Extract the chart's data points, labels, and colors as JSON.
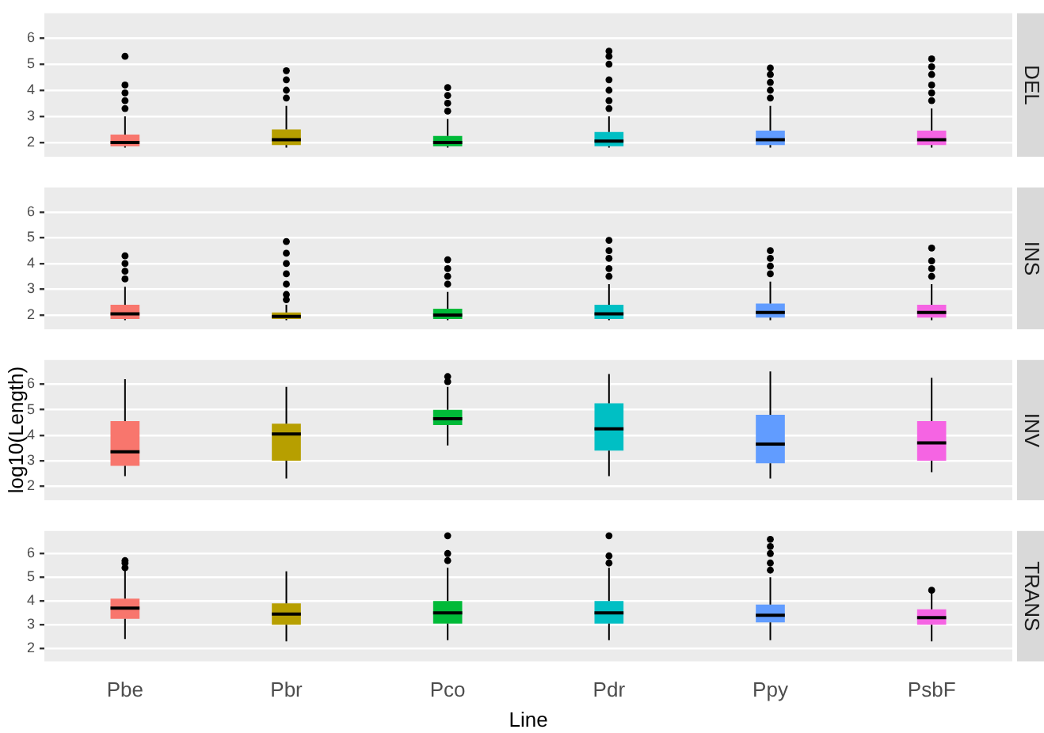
{
  "chart_data": [
    {
      "type": "box",
      "title": "DEL",
      "tick_labels": "y",
      "grid": true,
      "ylim": [
        1.45,
        6.95
      ],
      "yticks": [
        2,
        3,
        4,
        5,
        6
      ],
      "categories": [
        null,
        null,
        null,
        null,
        null,
        null
      ],
      "colors": [
        "#f8766d",
        "#b79f00",
        "#00ba38",
        "#00bfc4",
        "#619cff",
        "#f564e3"
      ],
      "boxes": [
        {
          "low": 1.8,
          "q1": 1.85,
          "median": 2.0,
          "q3": 2.3,
          "high": 3.0,
          "outliers": [
            3.3,
            3.6,
            3.9,
            4.2,
            5.3
          ]
        },
        {
          "low": 1.8,
          "q1": 1.9,
          "median": 2.1,
          "q3": 2.5,
          "high": 3.4,
          "outliers": [
            3.7,
            4.0,
            4.4,
            4.75
          ]
        },
        {
          "low": 1.8,
          "q1": 1.85,
          "median": 2.0,
          "q3": 2.25,
          "high": 2.9,
          "outliers": [
            3.2,
            3.5,
            3.8,
            4.1
          ]
        },
        {
          "low": 1.8,
          "q1": 1.85,
          "median": 2.05,
          "q3": 2.4,
          "high": 3.0,
          "outliers": [
            3.3,
            3.6,
            4.0,
            4.4,
            5.0,
            5.3,
            5.5
          ]
        },
        {
          "low": 1.8,
          "q1": 1.9,
          "median": 2.1,
          "q3": 2.45,
          "high": 3.4,
          "outliers": [
            3.7,
            4.0,
            4.3,
            4.6,
            4.85
          ]
        },
        {
          "low": 1.8,
          "q1": 1.9,
          "median": 2.1,
          "q3": 2.45,
          "high": 3.3,
          "outliers": [
            3.6,
            3.9,
            4.2,
            4.6,
            4.9,
            5.2
          ]
        }
      ]
    },
    {
      "type": "box",
      "title": "INS",
      "tick_labels": "y",
      "grid": true,
      "ylim": [
        1.45,
        6.95
      ],
      "yticks": [
        2,
        3,
        4,
        5,
        6
      ],
      "categories": [
        null,
        null,
        null,
        null,
        null,
        null
      ],
      "colors": [
        "#f8766d",
        "#b79f00",
        "#00ba38",
        "#00bfc4",
        "#619cff",
        "#f564e3"
      ],
      "boxes": [
        {
          "low": 1.8,
          "q1": 1.85,
          "median": 2.05,
          "q3": 2.4,
          "high": 3.1,
          "outliers": [
            3.4,
            3.7,
            4.0,
            4.3
          ]
        },
        {
          "low": 1.8,
          "q1": 1.85,
          "median": 1.95,
          "q3": 2.1,
          "high": 2.4,
          "outliers": [
            2.6,
            2.8,
            3.2,
            3.6,
            4.0,
            4.4,
            4.85
          ]
        },
        {
          "low": 1.8,
          "q1": 1.85,
          "median": 2.0,
          "q3": 2.25,
          "high": 2.9,
          "outliers": [
            3.2,
            3.5,
            3.8,
            4.15
          ]
        },
        {
          "low": 1.8,
          "q1": 1.85,
          "median": 2.05,
          "q3": 2.4,
          "high": 3.2,
          "outliers": [
            3.5,
            3.8,
            4.2,
            4.5,
            4.9
          ]
        },
        {
          "low": 1.8,
          "q1": 1.9,
          "median": 2.1,
          "q3": 2.45,
          "high": 3.3,
          "outliers": [
            3.6,
            3.9,
            4.2,
            4.5
          ]
        },
        {
          "low": 1.8,
          "q1": 1.9,
          "median": 2.1,
          "q3": 2.4,
          "high": 3.2,
          "outliers": [
            3.5,
            3.8,
            4.1,
            4.6
          ]
        }
      ]
    },
    {
      "type": "box",
      "title": "INV",
      "ylabel": "log10(Length)",
      "tick_labels": "y",
      "grid": true,
      "ylim": [
        1.45,
        6.95
      ],
      "yticks": [
        2,
        3,
        4,
        5,
        6
      ],
      "categories": [
        null,
        null,
        null,
        null,
        null,
        null
      ],
      "colors": [
        "#f8766d",
        "#b79f00",
        "#00ba38",
        "#00bfc4",
        "#619cff",
        "#f564e3"
      ],
      "boxes": [
        {
          "low": 2.4,
          "q1": 2.8,
          "median": 3.35,
          "q3": 4.55,
          "high": 6.2
        },
        {
          "low": 2.3,
          "q1": 3.0,
          "median": 4.05,
          "q3": 4.45,
          "high": 5.9
        },
        {
          "low": 3.6,
          "q1": 4.4,
          "median": 4.65,
          "q3": 5.0,
          "high": 5.9,
          "outliers": [
            6.1,
            6.3
          ]
        },
        {
          "low": 2.4,
          "q1": 3.4,
          "median": 4.25,
          "q3": 5.25,
          "high": 6.4
        },
        {
          "low": 2.3,
          "q1": 2.9,
          "median": 3.65,
          "q3": 4.8,
          "high": 6.5
        },
        {
          "low": 2.55,
          "q1": 3.0,
          "median": 3.7,
          "q3": 4.55,
          "high": 6.25
        }
      ]
    },
    {
      "type": "box",
      "title": "TRANS",
      "xlabel": "Line",
      "grid": true,
      "ylim": [
        1.45,
        6.95
      ],
      "yticks": [
        2,
        3,
        4,
        5,
        6
      ],
      "categories": [
        "Pbe",
        "Pbr",
        "Pco",
        "Pdr",
        "Ppy",
        "PsbF"
      ],
      "colors": [
        "#f8766d",
        "#b79f00",
        "#00ba38",
        "#00bfc4",
        "#619cff",
        "#f564e3"
      ],
      "boxes": [
        {
          "low": 2.4,
          "q1": 3.25,
          "median": 3.7,
          "q3": 4.1,
          "high": 5.3,
          "outliers": [
            5.4,
            5.6,
            5.7
          ]
        },
        {
          "low": 2.3,
          "q1": 3.0,
          "median": 3.45,
          "q3": 3.9,
          "high": 5.25
        },
        {
          "low": 2.35,
          "q1": 3.05,
          "median": 3.5,
          "q3": 4.0,
          "high": 5.4,
          "outliers": [
            5.7,
            6.0,
            6.75
          ]
        },
        {
          "low": 2.35,
          "q1": 3.05,
          "median": 3.5,
          "q3": 4.0,
          "high": 5.4,
          "outliers": [
            5.6,
            5.9,
            6.75
          ]
        },
        {
          "low": 2.35,
          "q1": 3.1,
          "median": 3.4,
          "q3": 3.85,
          "high": 5.0,
          "outliers": [
            5.3,
            5.6,
            6.0,
            6.3,
            6.6
          ]
        },
        {
          "low": 2.3,
          "q1": 3.0,
          "median": 3.3,
          "q3": 3.65,
          "high": 4.4,
          "outliers": [
            4.45
          ]
        }
      ]
    }
  ]
}
